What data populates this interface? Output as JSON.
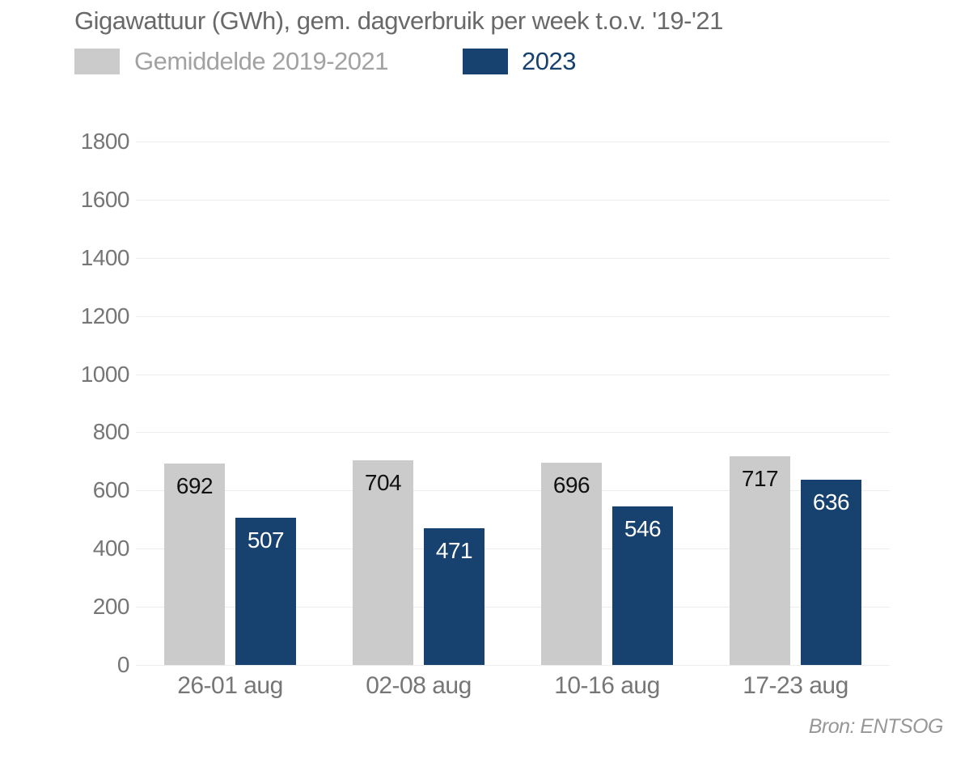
{
  "title": "Gigawattuur (GWh), gem. dagverbruik per week t.o.v. '19-'21",
  "legend": {
    "items": [
      {
        "label": "Gemiddelde 2019-2021",
        "swatch_color": "#cbcbcb",
        "label_color": "#a2a2a2"
      },
      {
        "label": "2023",
        "swatch_color": "#17426f",
        "label_color": "#17426f"
      }
    ]
  },
  "source": "Bron: ENTSOG",
  "chart_data": {
    "type": "bar",
    "categories": [
      "26-01 aug",
      "02-08 aug",
      "10-16 aug",
      "17-23 aug"
    ],
    "series": [
      {
        "name": "Gemiddelde 2019-2021",
        "color": "#cbcbcb",
        "label_color": "#111111",
        "values": [
          692,
          704,
          696,
          717
        ]
      },
      {
        "name": "2023",
        "color": "#17426f",
        "label_color": "#ffffff",
        "values": [
          507,
          471,
          546,
          636
        ]
      }
    ],
    "title": "Gigawattuur (GWh), gem. dagverbruik per week t.o.v. '19-'21",
    "xlabel": "",
    "ylabel": "",
    "ylim": [
      0,
      1800
    ],
    "yticks": [
      0,
      200,
      400,
      600,
      800,
      1000,
      1200,
      1400,
      1600,
      1800
    ],
    "grid": true,
    "legend_position": "top-left",
    "value_labels": "inside-top"
  }
}
